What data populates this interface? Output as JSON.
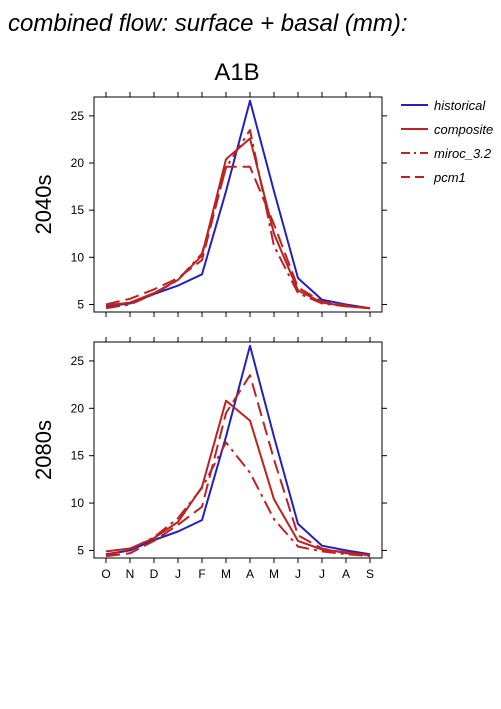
{
  "title": "combined flow: surface + basal (mm):",
  "scenario": "A1B",
  "chart_data": {
    "type": "line",
    "title": "combined flow: surface + basal (mm):",
    "subtitle": "A1B",
    "categories": [
      "O",
      "N",
      "D",
      "J",
      "F",
      "M",
      "A",
      "M",
      "J",
      "J",
      "A",
      "S"
    ],
    "ylim": [
      4.2,
      27.0
    ],
    "yticks": [
      5,
      10,
      15,
      20,
      25
    ],
    "legend_position": "right",
    "legend": [
      {
        "name": "historical",
        "color": "#2222bb",
        "dash": "solid"
      },
      {
        "name": "composite",
        "color": "#bb2222",
        "dash": "solid"
      },
      {
        "name": "miroc_3.2",
        "color": "#bb2222",
        "dash": "dashdot"
      },
      {
        "name": "pcm1",
        "color": "#bb2222",
        "dash": "dashed"
      }
    ],
    "panels": [
      {
        "label": "2040s",
        "series": [
          {
            "name": "historical",
            "values": [
              4.8,
              5.1,
              6.1,
              7.0,
              8.2,
              17.0,
              26.6,
              17.0,
              7.8,
              5.5,
              5.0,
              4.6
            ]
          },
          {
            "name": "composite",
            "values": [
              4.9,
              5.2,
              6.2,
              7.6,
              10.2,
              20.4,
              22.6,
              12.5,
              6.5,
              5.2,
              4.8,
              4.6
            ]
          },
          {
            "name": "miroc_3.2",
            "values": [
              4.6,
              5.0,
              6.1,
              7.6,
              10.4,
              19.5,
              23.5,
              11.2,
              6.2,
              5.1,
              4.8,
              4.6
            ]
          },
          {
            "name": "pcm1",
            "values": [
              5.0,
              5.6,
              6.6,
              7.8,
              9.7,
              19.6,
              19.6,
              13.5,
              6.8,
              5.3,
              4.9,
              4.6
            ]
          }
        ]
      },
      {
        "label": "2080s",
        "series": [
          {
            "name": "historical",
            "values": [
              4.6,
              5.0,
              6.1,
              7.0,
              8.2,
              17.0,
              26.6,
              17.0,
              7.8,
              5.5,
              5.0,
              4.6
            ]
          },
          {
            "name": "composite",
            "values": [
              4.9,
              5.2,
              6.3,
              8.0,
              11.7,
              20.8,
              18.7,
              10.4,
              6.0,
              5.1,
              4.8,
              4.5
            ]
          },
          {
            "name": "miroc_3.2",
            "values": [
              4.5,
              5.1,
              6.4,
              8.4,
              11.6,
              16.4,
              13.2,
              8.3,
              5.4,
              4.9,
              4.6,
              4.4
            ]
          },
          {
            "name": "pcm1",
            "values": [
              4.4,
              4.7,
              6.0,
              7.7,
              9.6,
              19.5,
              23.5,
              14.6,
              6.6,
              5.2,
              4.7,
              4.5
            ]
          }
        ]
      }
    ]
  }
}
